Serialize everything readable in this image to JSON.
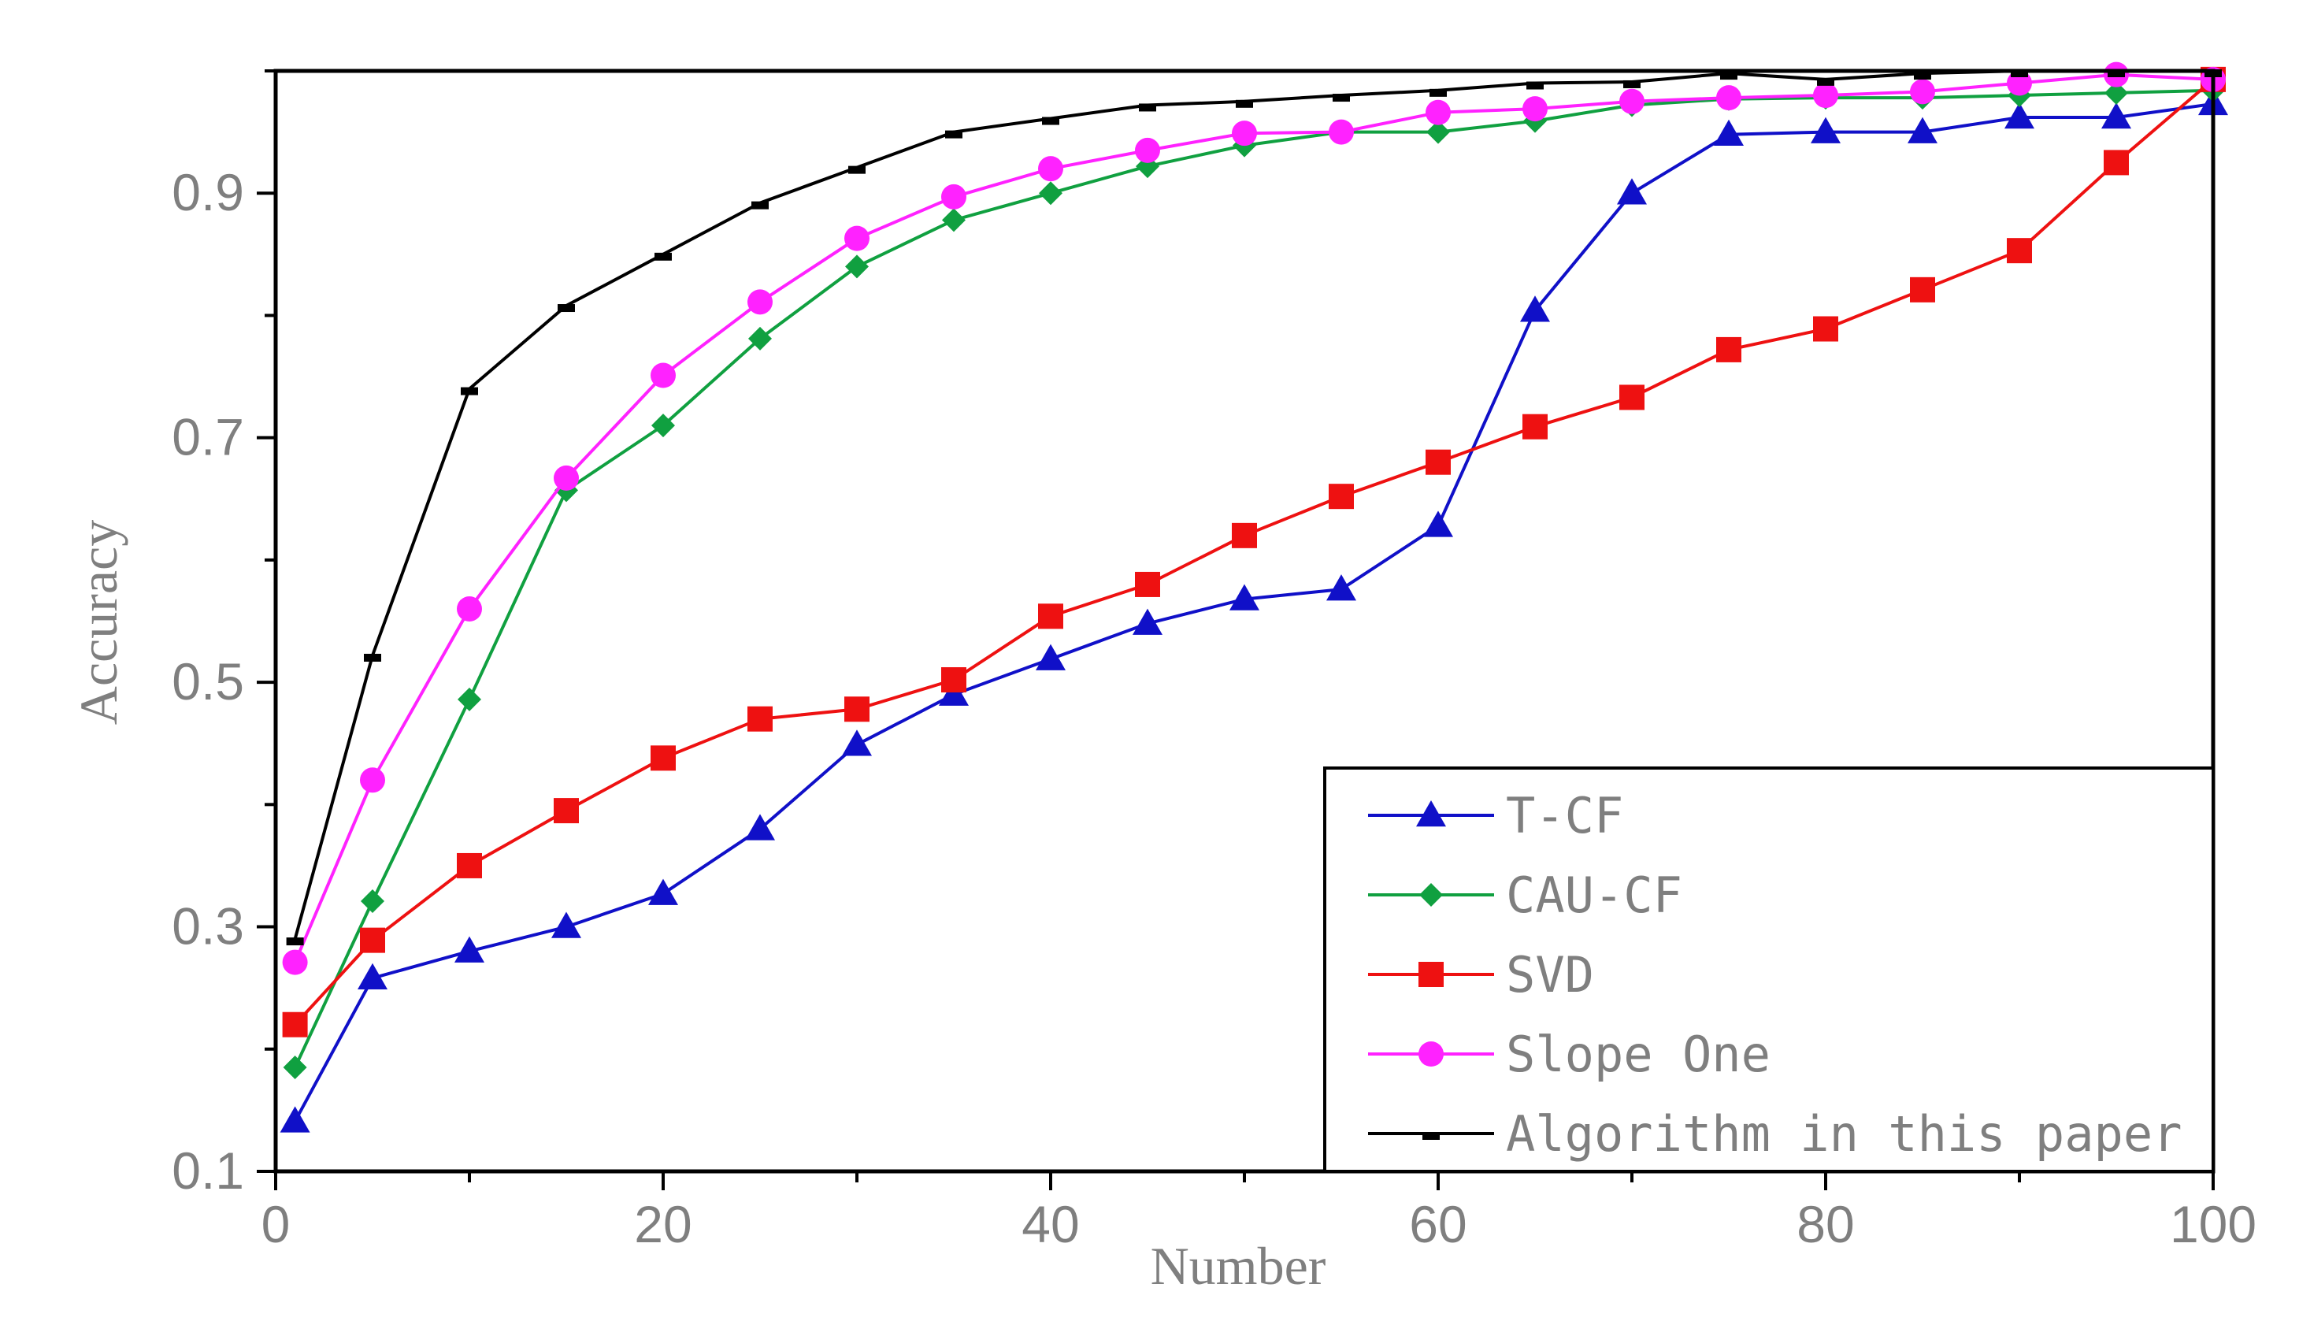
{
  "chart_data": {
    "type": "line",
    "title": "",
    "xlabel": "Number",
    "ylabel": "Accuracy",
    "xlim": [
      0,
      100
    ],
    "ylim": [
      0.1,
      1.0
    ],
    "xticks": [
      0,
      20,
      40,
      60,
      80,
      100
    ],
    "xtick_labels": [
      "0",
      "20",
      "40",
      "60",
      "80",
      "100"
    ],
    "yticks": [
      0.1,
      0.3,
      0.5,
      0.7,
      0.9
    ],
    "ytick_labels": [
      "0.1",
      "0.3",
      "0.5",
      "0.7",
      "0.9"
    ],
    "grid": false,
    "legend_position": "bottom-right",
    "series": [
      {
        "name": "T-CF",
        "color": "#1010c8",
        "marker": "triangle",
        "x": [
          1,
          5,
          10,
          15,
          20,
          25,
          30,
          35,
          40,
          45,
          50,
          55,
          60,
          65,
          70,
          75,
          80,
          85,
          90,
          95,
          100
        ],
        "y": [
          0.141,
          0.258,
          0.28,
          0.3,
          0.327,
          0.38,
          0.449,
          0.49,
          0.519,
          0.548,
          0.568,
          0.576,
          0.628,
          0.804,
          0.9,
          0.948,
          0.95,
          0.95,
          0.962,
          0.962,
          0.973
        ]
      },
      {
        "name": "CAU-CF",
        "color": "#10a040",
        "marker": "diamond",
        "x": [
          1,
          5,
          10,
          15,
          20,
          25,
          30,
          35,
          40,
          45,
          50,
          55,
          60,
          65,
          70,
          75,
          80,
          85,
          90,
          95,
          100
        ],
        "y": [
          0.185,
          0.321,
          0.486,
          0.657,
          0.71,
          0.781,
          0.84,
          0.878,
          0.9,
          0.922,
          0.939,
          0.95,
          0.95,
          0.959,
          0.972,
          0.977,
          0.978,
          0.978,
          0.98,
          0.982,
          0.984
        ]
      },
      {
        "name": "SVD",
        "color": "#ee1111",
        "marker": "square",
        "x": [
          1,
          5,
          10,
          15,
          20,
          25,
          30,
          35,
          40,
          45,
          50,
          55,
          60,
          65,
          70,
          75,
          80,
          85,
          90,
          95,
          100
        ],
        "y": [
          0.22,
          0.289,
          0.35,
          0.395,
          0.438,
          0.47,
          0.478,
          0.502,
          0.554,
          0.58,
          0.62,
          0.652,
          0.68,
          0.709,
          0.733,
          0.772,
          0.789,
          0.821,
          0.853,
          0.925,
          0.993
        ]
      },
      {
        "name": "Slope One",
        "color": "#ff22ff",
        "marker": "circle",
        "x": [
          1,
          5,
          10,
          15,
          20,
          25,
          30,
          35,
          40,
          45,
          50,
          55,
          60,
          65,
          70,
          75,
          80,
          85,
          90,
          95,
          100
        ],
        "y": [
          0.271,
          0.42,
          0.56,
          0.667,
          0.751,
          0.811,
          0.863,
          0.897,
          0.92,
          0.935,
          0.949,
          0.95,
          0.966,
          0.969,
          0.975,
          0.978,
          0.98,
          0.983,
          0.99,
          0.997,
          0.993
        ]
      },
      {
        "name": "Algorithm in this paper",
        "color": "#000000",
        "marker": "dash",
        "x": [
          1,
          5,
          10,
          15,
          20,
          25,
          30,
          35,
          40,
          45,
          50,
          55,
          60,
          65,
          70,
          75,
          80,
          85,
          90,
          95,
          100
        ],
        "y": [
          0.29,
          0.522,
          0.74,
          0.808,
          0.85,
          0.892,
          0.921,
          0.95,
          0.961,
          0.972,
          0.975,
          0.98,
          0.984,
          0.99,
          0.991,
          0.998,
          0.993,
          0.998,
          1.0,
          1.0,
          1.0
        ]
      }
    ]
  }
}
